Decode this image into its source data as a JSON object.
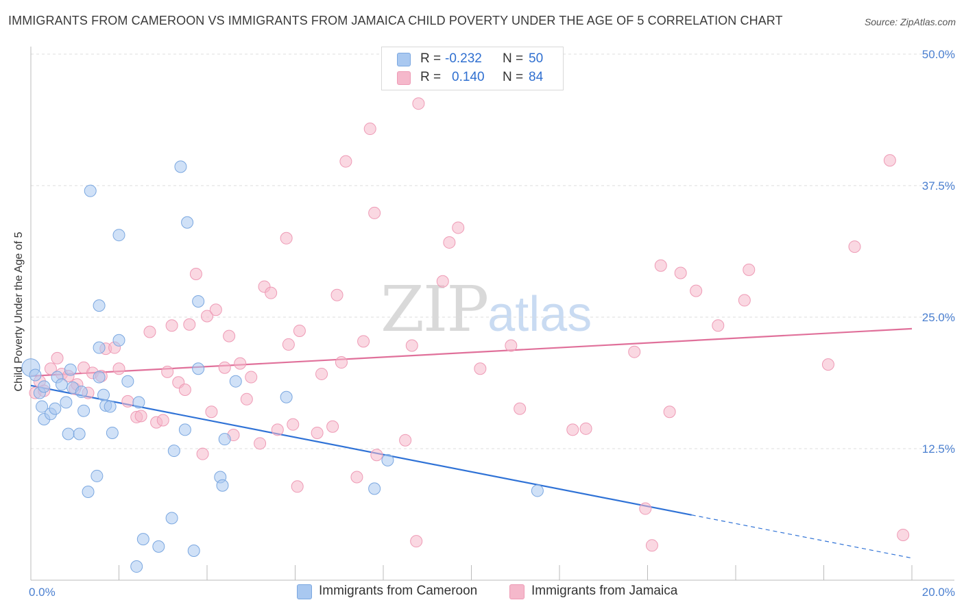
{
  "title": "IMMIGRANTS FROM CAMEROON VS IMMIGRANTS FROM JAMAICA CHILD POVERTY UNDER THE AGE OF 5 CORRELATION CHART",
  "source": "Source: ZipAtlas.com",
  "watermark": {
    "zip": "ZIP",
    "atlas": "atlas"
  },
  "legend": {
    "rows": [
      {
        "r_label": "R =",
        "r_value": "-0.232",
        "n_label": "N =",
        "n_value": "50",
        "color": "#a9c8f0"
      },
      {
        "r_label": "R =",
        "r_value": "0.140",
        "n_label": "N =",
        "n_value": "84",
        "color": "#f5b8cb"
      }
    ]
  },
  "bottom_legend": {
    "cameroon": "Immigrants from Cameroon",
    "jamaica": "Immigrants from Jamaica"
  },
  "colors": {
    "cameroon_fill": "#a9c8f0",
    "cameroon_stroke": "#7aa7e0",
    "cameroon_line": "#2f72d6",
    "jamaica_fill": "#f5b8cb",
    "jamaica_stroke": "#ee9ab5",
    "jamaica_line": "#e0709a",
    "tick_text": "#4a7fd0"
  },
  "chart_data": {
    "type": "scatter",
    "xlabel": "",
    "ylabel": "Child Poverty Under the Age of 5",
    "xlim": [
      0,
      20
    ],
    "ylim": [
      0,
      50
    ],
    "x_tick_labels": [
      "0.0%",
      "20.0%"
    ],
    "y_ticks": [
      12.5,
      25.0,
      37.5,
      50.0
    ],
    "y_tick_labels": [
      "12.5%",
      "25.0%",
      "37.5%",
      "50.0%"
    ],
    "grid": "horizontal dashed",
    "series": [
      {
        "name": "Immigrants from Cameroon",
        "points": [
          [
            0.0,
            20.2
          ],
          [
            0.1,
            19.5
          ],
          [
            0.2,
            17.8
          ],
          [
            0.25,
            16.5
          ],
          [
            0.3,
            15.3
          ],
          [
            0.3,
            18.4
          ],
          [
            0.45,
            15.8
          ],
          [
            0.55,
            16.3
          ],
          [
            0.6,
            19.3
          ],
          [
            0.7,
            18.6
          ],
          [
            0.8,
            16.9
          ],
          [
            0.85,
            13.9
          ],
          [
            0.9,
            20.0
          ],
          [
            0.95,
            18.3
          ],
          [
            1.1,
            13.9
          ],
          [
            1.15,
            17.9
          ],
          [
            1.2,
            16.1
          ],
          [
            1.3,
            8.4
          ],
          [
            1.35,
            37.0
          ],
          [
            1.5,
            9.9
          ],
          [
            1.55,
            19.3
          ],
          [
            1.55,
            26.1
          ],
          [
            1.55,
            22.1
          ],
          [
            1.65,
            17.6
          ],
          [
            1.7,
            16.6
          ],
          [
            1.8,
            16.5
          ],
          [
            1.85,
            14.0
          ],
          [
            2.0,
            32.8
          ],
          [
            2.0,
            22.8
          ],
          [
            2.2,
            18.9
          ],
          [
            2.4,
            1.3
          ],
          [
            2.45,
            16.9
          ],
          [
            2.55,
            3.9
          ],
          [
            2.9,
            3.2
          ],
          [
            3.2,
            5.9
          ],
          [
            3.25,
            12.3
          ],
          [
            3.4,
            39.3
          ],
          [
            3.5,
            14.3
          ],
          [
            3.55,
            34.0
          ],
          [
            3.7,
            2.8
          ],
          [
            3.8,
            26.5
          ],
          [
            3.8,
            20.1
          ],
          [
            4.3,
            9.8
          ],
          [
            4.35,
            9.0
          ],
          [
            4.4,
            13.4
          ],
          [
            4.65,
            18.9
          ],
          [
            5.8,
            17.4
          ],
          [
            7.8,
            8.7
          ],
          [
            8.1,
            11.4
          ],
          [
            11.5,
            8.5
          ]
        ],
        "trend": {
          "x0": 0,
          "y0": 18.5,
          "x1": 15,
          "y1": 6.2,
          "dashed_to": [
            20,
            2.1
          ]
        }
      },
      {
        "name": "Immigrants from Jamaica",
        "points": [
          [
            0.1,
            17.8
          ],
          [
            0.2,
            18.9
          ],
          [
            0.3,
            18.0
          ],
          [
            0.45,
            20.1
          ],
          [
            0.6,
            21.1
          ],
          [
            0.7,
            19.6
          ],
          [
            0.85,
            19.4
          ],
          [
            1.0,
            18.2
          ],
          [
            1.05,
            18.6
          ],
          [
            1.2,
            20.2
          ],
          [
            1.3,
            17.8
          ],
          [
            1.4,
            19.7
          ],
          [
            1.6,
            19.4
          ],
          [
            1.7,
            22.0
          ],
          [
            1.9,
            22.1
          ],
          [
            2.0,
            20.1
          ],
          [
            2.2,
            17.0
          ],
          [
            2.4,
            15.5
          ],
          [
            2.5,
            15.6
          ],
          [
            2.7,
            23.6
          ],
          [
            2.85,
            15.0
          ],
          [
            3.0,
            15.2
          ],
          [
            3.1,
            19.8
          ],
          [
            3.2,
            24.2
          ],
          [
            3.35,
            18.8
          ],
          [
            3.5,
            18.1
          ],
          [
            3.6,
            24.3
          ],
          [
            3.75,
            29.1
          ],
          [
            3.9,
            12.0
          ],
          [
            4.0,
            25.1
          ],
          [
            4.1,
            16.0
          ],
          [
            4.2,
            25.7
          ],
          [
            4.4,
            20.2
          ],
          [
            4.5,
            23.2
          ],
          [
            4.6,
            13.8
          ],
          [
            4.75,
            20.6
          ],
          [
            4.9,
            17.2
          ],
          [
            5.0,
            19.3
          ],
          [
            5.2,
            13.0
          ],
          [
            5.3,
            27.9
          ],
          [
            5.45,
            27.3
          ],
          [
            5.6,
            14.3
          ],
          [
            5.8,
            32.5
          ],
          [
            5.85,
            22.4
          ],
          [
            5.95,
            14.8
          ],
          [
            6.05,
            8.9
          ],
          [
            6.1,
            23.7
          ],
          [
            6.5,
            14.0
          ],
          [
            6.6,
            19.6
          ],
          [
            6.85,
            14.6
          ],
          [
            6.95,
            27.1
          ],
          [
            7.05,
            20.7
          ],
          [
            7.15,
            39.8
          ],
          [
            7.4,
            9.8
          ],
          [
            7.55,
            22.7
          ],
          [
            7.7,
            42.9
          ],
          [
            7.8,
            34.9
          ],
          [
            7.85,
            11.9
          ],
          [
            8.5,
            13.3
          ],
          [
            8.65,
            22.3
          ],
          [
            8.75,
            3.7
          ],
          [
            8.8,
            45.3
          ],
          [
            9.35,
            28.4
          ],
          [
            9.5,
            32.1
          ],
          [
            9.7,
            33.5
          ],
          [
            10.2,
            20.1
          ],
          [
            10.9,
            22.3
          ],
          [
            11.1,
            16.3
          ],
          [
            12.3,
            14.3
          ],
          [
            12.6,
            14.4
          ],
          [
            13.7,
            21.7
          ],
          [
            13.95,
            6.8
          ],
          [
            14.1,
            3.3
          ],
          [
            14.3,
            29.9
          ],
          [
            14.5,
            16.0
          ],
          [
            14.75,
            29.2
          ],
          [
            15.1,
            27.5
          ],
          [
            15.6,
            24.2
          ],
          [
            16.2,
            26.6
          ],
          [
            16.3,
            29.5
          ],
          [
            18.1,
            20.5
          ],
          [
            18.7,
            31.7
          ],
          [
            19.5,
            39.9
          ],
          [
            19.8,
            4.3
          ]
        ],
        "trend": {
          "x0": 0,
          "y0": 19.4,
          "x1": 20,
          "y1": 23.9
        }
      }
    ]
  }
}
